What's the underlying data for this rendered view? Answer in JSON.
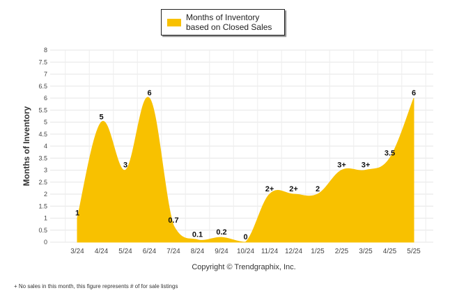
{
  "chart_data": {
    "type": "area",
    "legend": {
      "label": "Months of Inventory based on Closed Sales",
      "position": "top-center"
    },
    "ylabel": "Months of Inventory",
    "ylim": [
      0,
      8
    ],
    "yticks": [
      "0",
      "0.5",
      "1",
      "1.5",
      "2",
      "2.5",
      "3",
      "3.5",
      "4",
      "4.5",
      "5",
      "5.5",
      "6",
      "6.5",
      "7",
      "7.5",
      "8"
    ],
    "categories": [
      "3/24",
      "4/24",
      "5/24",
      "6/24",
      "7/24",
      "8/24",
      "9/24",
      "10/24",
      "11/24",
      "12/24",
      "1/25",
      "2/25",
      "3/25",
      "4/25",
      "5/25"
    ],
    "series": [
      {
        "name": "Months of Inventory based on Closed Sales",
        "values": [
          1,
          5,
          3,
          6,
          0.7,
          0.1,
          0.2,
          0,
          2,
          2,
          2,
          3,
          3,
          3.5,
          6
        ],
        "labels": [
          "1",
          "5",
          "3",
          "6",
          "0.7",
          "0.1",
          "0.2",
          "0",
          "2+",
          "2+",
          "2",
          "3+",
          "3+",
          "3.5",
          "6"
        ]
      }
    ],
    "grid": true,
    "color": "#f8c100",
    "xlabel": "Copyright © Trendgraphix, Inc."
  },
  "footnote": "+  No sales in this month, this figure represents # of for sale listings"
}
